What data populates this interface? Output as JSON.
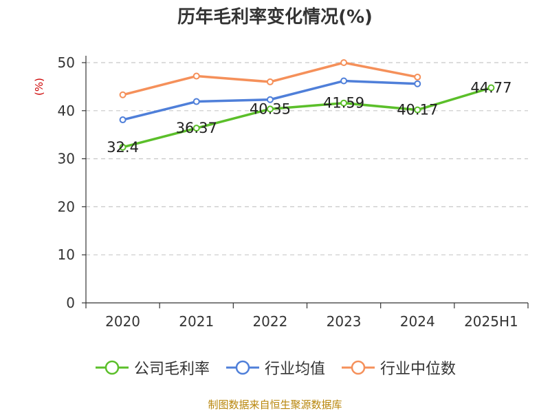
{
  "chart_data": {
    "type": "line",
    "title": "历年毛利率变化情况(%)",
    "ylabel": "(%)",
    "xlabel": "",
    "categories": [
      "2020",
      "2021",
      "2022",
      "2023",
      "2024",
      "2025H1"
    ],
    "ylim": [
      0,
      50
    ],
    "yticks": [
      0,
      10,
      20,
      30,
      40,
      50
    ],
    "grid": true,
    "legend_position": "bottom",
    "series": [
      {
        "name": "公司毛利率",
        "color": "#5bbf2a",
        "values": [
          32.4,
          36.37,
          40.35,
          41.59,
          40.17,
          44.77
        ],
        "labels": [
          "32.4",
          "36.37",
          "40.35",
          "41.59",
          "40.17",
          "44.77"
        ]
      },
      {
        "name": "行业均值",
        "color": "#4f7fd9",
        "values": [
          38.1,
          41.9,
          42.3,
          46.2,
          45.6,
          null
        ]
      },
      {
        "name": "行业中位数",
        "color": "#f5905a",
        "values": [
          43.3,
          47.2,
          46.0,
          50.0,
          47.0,
          null
        ]
      }
    ]
  },
  "footer": {
    "source": "制图数据来自恒生聚源数据库"
  }
}
